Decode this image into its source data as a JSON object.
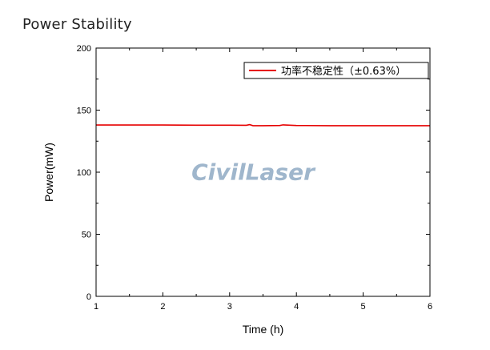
{
  "page": {
    "title": "Power Stability"
  },
  "chart_data": {
    "type": "line",
    "title": "",
    "xlabel": "Time (h)",
    "ylabel": "Power(mW)",
    "xlim": [
      1,
      6
    ],
    "ylim": [
      0,
      200
    ],
    "x_ticks": [
      1,
      2,
      3,
      4,
      5,
      6
    ],
    "y_ticks": [
      0,
      50,
      100,
      150,
      200
    ],
    "legend_position": "top-right",
    "grid": false,
    "series": [
      {
        "name": "功率不稳定性（±0.63%）",
        "color": "#e60000",
        "x": [
          1.0,
          1.5,
          2.0,
          2.5,
          3.0,
          3.25,
          3.3,
          3.35,
          3.5,
          3.75,
          3.8,
          4.0,
          4.5,
          5.0,
          5.5,
          6.0
        ],
        "y": [
          138.0,
          138.0,
          138.0,
          137.9,
          137.9,
          137.8,
          138.3,
          137.5,
          137.5,
          137.6,
          138.1,
          137.6,
          137.5,
          137.5,
          137.5,
          137.5
        ]
      }
    ],
    "watermark": "CivilLaser"
  }
}
